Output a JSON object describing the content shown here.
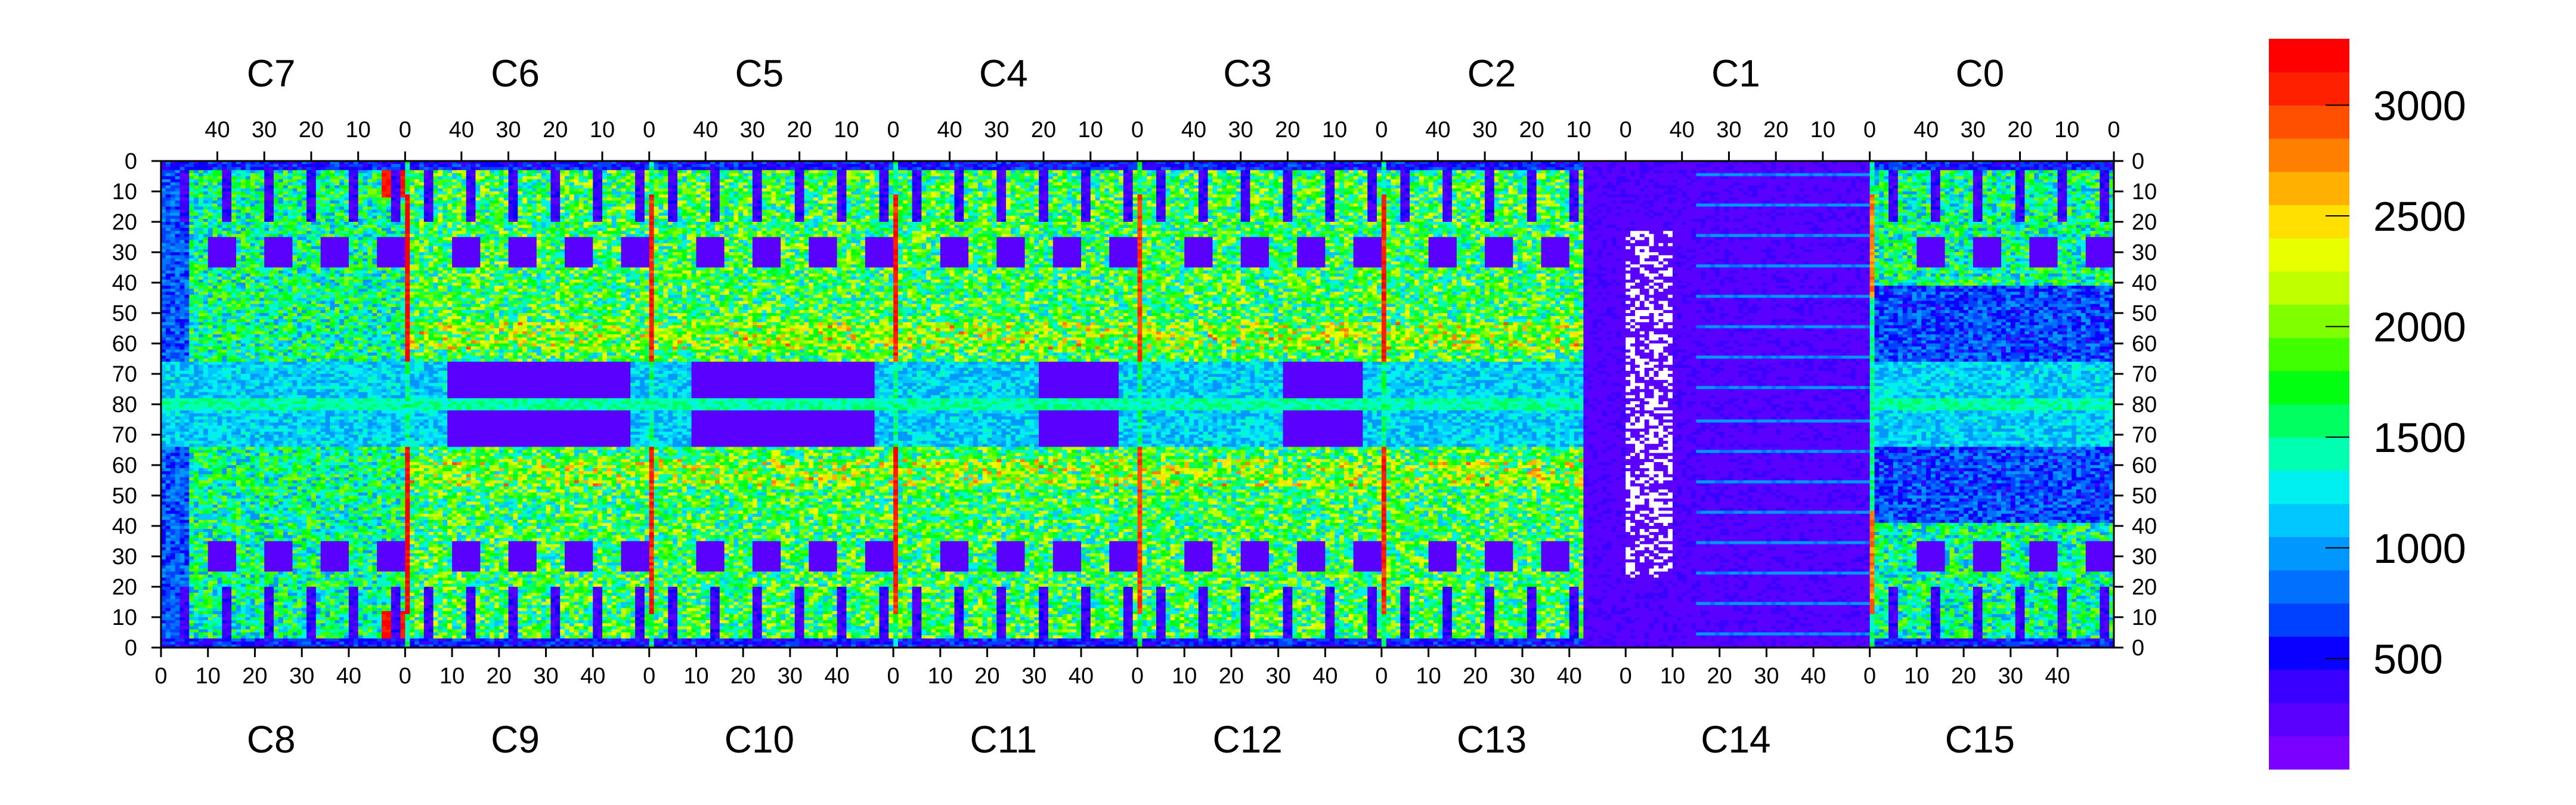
{
  "chart_data": {
    "type": "heatmap",
    "title": "",
    "chip_labels_top": [
      "C7",
      "C6",
      "C5",
      "C4",
      "C3",
      "C2",
      "C1",
      "C0"
    ],
    "chip_labels_bottom": [
      "C8",
      "C9",
      "C10",
      "C11",
      "C12",
      "C13",
      "C14",
      "C15"
    ],
    "top_axis_ticks": [
      "40",
      "30",
      "20",
      "10",
      "0"
    ],
    "bottom_axis_ticks": [
      "0",
      "10",
      "20",
      "30",
      "40"
    ],
    "left_axis_ticks": [
      "0",
      "10",
      "20",
      "30",
      "40",
      "50",
      "60",
      "70",
      "80",
      "70",
      "60",
      "50",
      "40",
      "30",
      "20",
      "10",
      "0"
    ],
    "right_axis_ticks": [
      "0",
      "10",
      "20",
      "30",
      "40",
      "50",
      "60",
      "70",
      "80",
      "70",
      "60",
      "50",
      "40",
      "30",
      "20",
      "10",
      "0"
    ],
    "chip_columns": 52,
    "half_rows": 80,
    "colorbar": {
      "min": 0,
      "max": 3300,
      "ticks": [
        "500",
        "1000",
        "1500",
        "2000",
        "2500",
        "3000"
      ],
      "tick_values": [
        500,
        1000,
        1500,
        2000,
        2500,
        3000
      ],
      "colors": [
        "#7a00ff",
        "#5a00ff",
        "#3a00ff",
        "#0a00ff",
        "#0040ff",
        "#0070ff",
        "#0098ff",
        "#00c8ff",
        "#00f0f0",
        "#00ffb0",
        "#00ff60",
        "#00ff10",
        "#40ff00",
        "#80ff00",
        "#c0ff00",
        "#e8ff00",
        "#ffe000",
        "#ffb000",
        "#ff8000",
        "#ff5000",
        "#ff2000",
        "#ff0000"
      ]
    },
    "hot_columns": [
      {
        "boundary": "C7/C6 – C8/C9",
        "value": 3200
      },
      {
        "boundary": "C6/C5 – C9/C10",
        "value": 3100
      },
      {
        "boundary": "C5/C4 – C10/C11",
        "value": 3100
      },
      {
        "boundary": "C4/C3 – C11/C12",
        "value": 3000
      },
      {
        "boundary": "C3/C2 – C12/C13",
        "value": 3100
      },
      {
        "boundary": "C1/C0 – C14/C15",
        "value": 2800
      }
    ],
    "typical_values": {
      "active_area": 1700,
      "pads": 200,
      "central_band": 900,
      "dead_region": 150
    }
  }
}
